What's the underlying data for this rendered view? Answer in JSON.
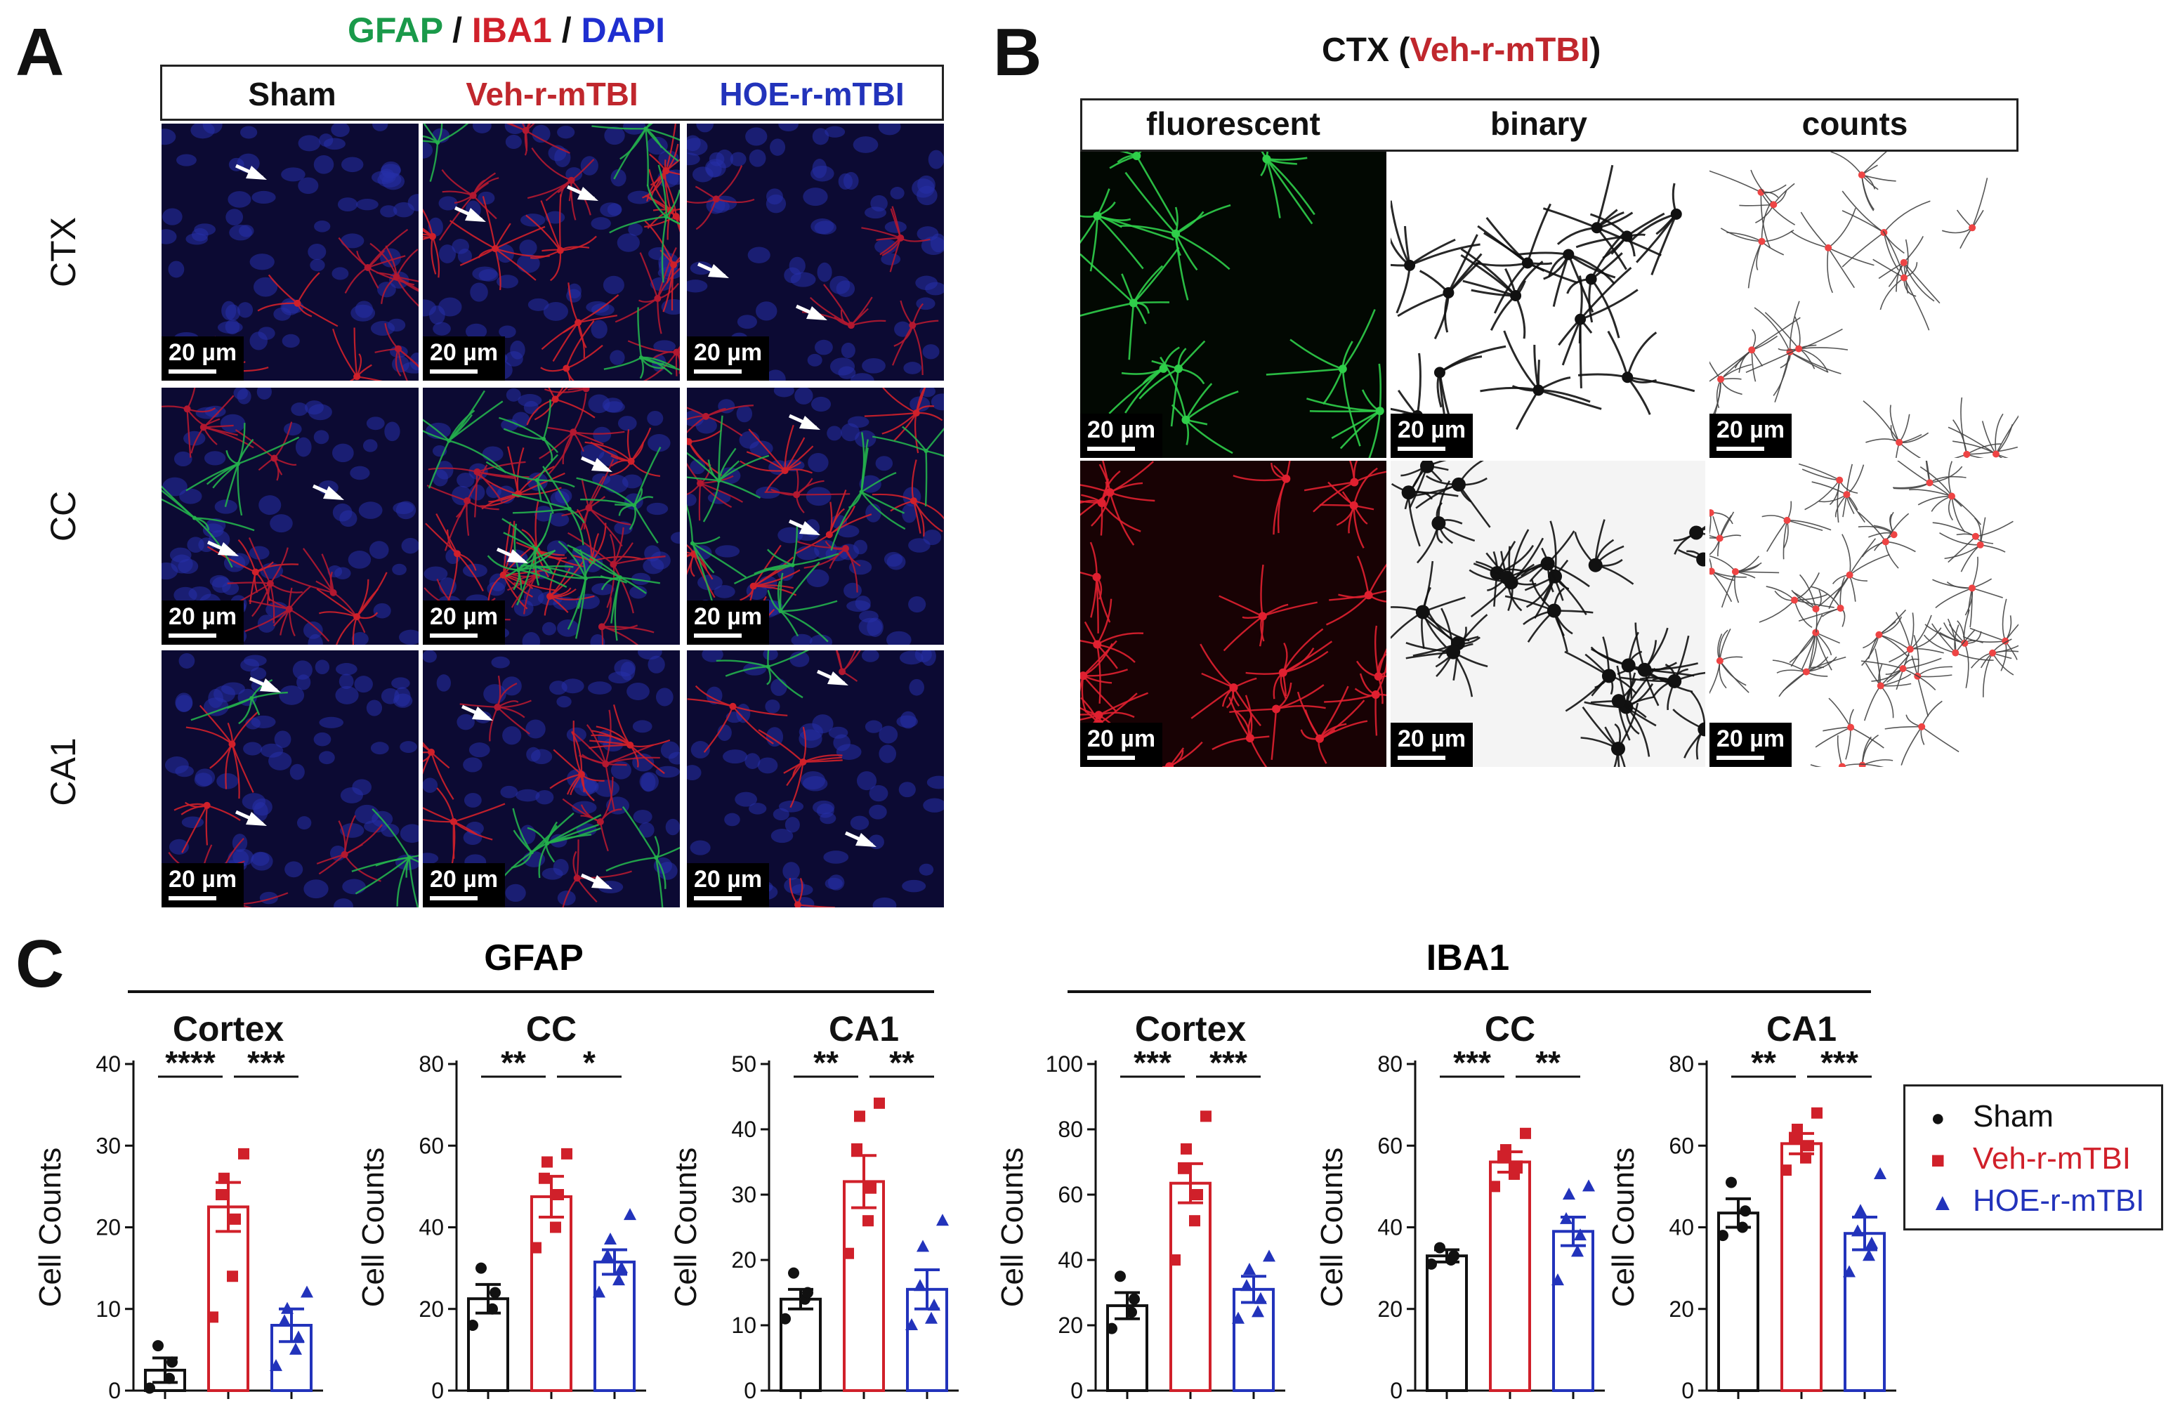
{
  "panels": {
    "a": "A",
    "b": "B",
    "c": "C"
  },
  "panel_a": {
    "stain_parts": [
      {
        "text": "GFAP",
        "color": "#1a9a4a"
      },
      {
        "text": " / ",
        "color": "#111111"
      },
      {
        "text": "IBA1",
        "color": "#d0202a"
      },
      {
        "text": " / ",
        "color": "#111111"
      },
      {
        "text": "DAPI",
        "color": "#1f2fd0"
      }
    ],
    "columns": [
      {
        "label": "Sham",
        "color": "#111111"
      },
      {
        "label": "Veh-r-mTBI",
        "color": "#c0272d"
      },
      {
        "label": "HOE-r-mTBI",
        "color": "#2233bb"
      }
    ],
    "rows": [
      "CTX",
      "CC",
      "CA1"
    ],
    "scale": "20 µm"
  },
  "panel_b": {
    "title_prefix": "CTX (",
    "title_group": "Veh-r-mTBI",
    "title_suffix": ")",
    "title_group_color": "#c0272d",
    "columns": [
      "fluorescent",
      "binary",
      "counts"
    ],
    "scale": "20 µm"
  },
  "panel_c": {
    "group_titles": [
      "GFAP",
      "IBA1"
    ],
    "ylabel": "Cell Counts",
    "colors": {
      "Sham": "#111111",
      "Veh-r-mTBI": "#d0202a",
      "HOE-r-mTBI": "#2233bb"
    },
    "legend": [
      {
        "name": "Sham",
        "marker": "●",
        "color": "#111111"
      },
      {
        "name": "Veh-r-mTBI",
        "marker": "■",
        "color": "#d0202a"
      },
      {
        "name": "HOE-r-mTBI",
        "marker": "▲",
        "color": "#2233bb"
      }
    ]
  },
  "chart_data": [
    {
      "type": "bar",
      "title": "Cortex",
      "group": "GFAP",
      "ylabel": "Cell Counts",
      "ylim": [
        0,
        40
      ],
      "yticks": [
        0,
        10,
        20,
        30,
        40
      ],
      "categories": [
        "Sham",
        "Veh-r-mTBI",
        "HOE-r-mTBI"
      ],
      "values": [
        2.5,
        22.5,
        8
      ],
      "sem": [
        1.5,
        3,
        2
      ],
      "points": [
        [
          0.3,
          1.5,
          3.5,
          5.5
        ],
        [
          9,
          14,
          21,
          24,
          26,
          29
        ],
        [
          3,
          5,
          6.5,
          8.5,
          10,
          12
        ]
      ],
      "significance": [
        {
          "from": 0,
          "to": 1,
          "label": "****"
        },
        {
          "from": 1,
          "to": 2,
          "label": "***"
        }
      ]
    },
    {
      "type": "bar",
      "title": "CC",
      "group": "GFAP",
      "ylabel": "Cell Counts",
      "ylim": [
        0,
        80
      ],
      "yticks": [
        0,
        20,
        40,
        60,
        80
      ],
      "categories": [
        "Sham",
        "Veh-r-mTBI",
        "HOE-r-mTBI"
      ],
      "values": [
        22.5,
        47.5,
        31.5
      ],
      "sem": [
        3.5,
        5,
        3
      ],
      "points": [
        [
          16,
          20,
          24,
          30
        ],
        [
          35,
          40,
          48,
          52,
          56,
          58
        ],
        [
          24,
          27,
          30,
          33,
          37,
          43
        ]
      ],
      "significance": [
        {
          "from": 0,
          "to": 1,
          "label": "**"
        },
        {
          "from": 1,
          "to": 2,
          "label": "*"
        }
      ]
    },
    {
      "type": "bar",
      "title": "CA1",
      "group": "GFAP",
      "ylabel": "Cell Counts",
      "ylim": [
        0,
        50
      ],
      "yticks": [
        0,
        10,
        20,
        30,
        40,
        50
      ],
      "categories": [
        "Sham",
        "Veh-r-mTBI",
        "HOE-r-mTBI"
      ],
      "values": [
        14,
        32,
        15.5
      ],
      "sem": [
        1.5,
        4,
        3
      ],
      "points": [
        [
          11,
          14,
          15,
          18
        ],
        [
          21,
          26,
          31,
          37,
          42,
          44
        ],
        [
          10,
          11,
          13,
          16,
          22,
          26
        ]
      ],
      "significance": [
        {
          "from": 0,
          "to": 1,
          "label": "**"
        },
        {
          "from": 1,
          "to": 2,
          "label": "**"
        }
      ]
    },
    {
      "type": "bar",
      "title": "Cortex",
      "group": "IBA1",
      "ylabel": "Cell Counts",
      "ylim": [
        0,
        100
      ],
      "yticks": [
        0,
        20,
        40,
        60,
        80,
        100
      ],
      "categories": [
        "Sham",
        "Veh-r-mTBI",
        "HOE-r-mTBI"
      ],
      "values": [
        26,
        63.5,
        31
      ],
      "sem": [
        4,
        6,
        4
      ],
      "points": [
        [
          19,
          24,
          28,
          35
        ],
        [
          40,
          52,
          60,
          68,
          74,
          84
        ],
        [
          22,
          24,
          28,
          32,
          37,
          41
        ]
      ],
      "significance": [
        {
          "from": 0,
          "to": 1,
          "label": "***"
        },
        {
          "from": 1,
          "to": 2,
          "label": "***"
        }
      ]
    },
    {
      "type": "bar",
      "title": "CC",
      "group": "IBA1",
      "ylabel": "Cell Counts",
      "ylim": [
        0,
        80
      ],
      "yticks": [
        0,
        20,
        40,
        60,
        80
      ],
      "categories": [
        "Sham",
        "Veh-r-mTBI",
        "HOE-r-mTBI"
      ],
      "values": [
        33,
        56,
        39
      ],
      "sem": [
        1.5,
        2.5,
        3.5
      ],
      "points": [
        [
          31,
          32,
          33,
          35
        ],
        [
          50,
          53,
          55,
          57,
          59,
          63
        ],
        [
          27,
          34,
          38,
          42,
          48,
          50
        ]
      ],
      "significance": [
        {
          "from": 0,
          "to": 1,
          "label": "***"
        },
        {
          "from": 1,
          "to": 2,
          "label": "**"
        }
      ]
    },
    {
      "type": "bar",
      "title": "CA1",
      "group": "IBA1",
      "ylabel": "Cell Counts",
      "ylim": [
        0,
        80
      ],
      "yticks": [
        0,
        20,
        40,
        60,
        80
      ],
      "categories": [
        "Sham",
        "Veh-r-mTBI",
        "HOE-r-mTBI"
      ],
      "values": [
        43.5,
        60.5,
        38.5
      ],
      "sem": [
        3.5,
        2.5,
        4
      ],
      "points": [
        [
          38,
          40,
          44,
          51
        ],
        [
          54,
          57,
          60,
          62,
          64,
          68
        ],
        [
          29,
          33,
          36,
          39,
          44,
          53
        ]
      ],
      "significance": [
        {
          "from": 0,
          "to": 1,
          "label": "**"
        },
        {
          "from": 1,
          "to": 2,
          "label": "***"
        }
      ]
    }
  ]
}
